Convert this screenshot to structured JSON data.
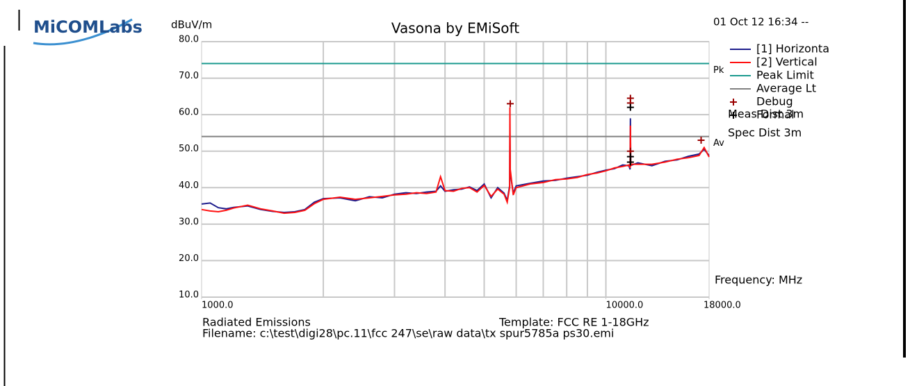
{
  "logo": "MiCOMLabs",
  "chart_data": {
    "type": "line",
    "title": "Vasona by EMiSoft",
    "timestamp": "01 Oct 12 16:34 --",
    "ylabel": "dBuV/m",
    "xlabel": "Frequency: MHz",
    "notes": [
      "Meas Dist 3m",
      "Spec Dist 3m"
    ],
    "footer": [
      "Radiated Emissions",
      "Template: FCC RE 1-18GHz",
      "Filename: c:\\test\\digi28\\pc.11\\fcc 247\\se\\raw data\\tx spur5785a ps30.emi"
    ],
    "xscale": "log",
    "xlim": [
      1000,
      18000
    ],
    "ylim": [
      10,
      80
    ],
    "xticks": [
      {
        "value": 1000,
        "label": "1000.0"
      },
      {
        "value": 10000,
        "label": "10000.0"
      },
      {
        "value": 18000,
        "label": "18000.0"
      }
    ],
    "xgrid": [
      2000,
      3000,
      4000,
      5000,
      6000,
      7000,
      8000,
      9000,
      10000
    ],
    "yticks": [
      {
        "value": 10,
        "label": "10.0"
      },
      {
        "value": 20,
        "label": "20.0"
      },
      {
        "value": 30,
        "label": "30.0"
      },
      {
        "value": 40,
        "label": "40.0"
      },
      {
        "value": 50,
        "label": "50.0"
      },
      {
        "value": 60,
        "label": "60.0"
      },
      {
        "value": 70,
        "label": "70.0"
      },
      {
        "value": 80,
        "label": "80.0"
      }
    ],
    "grid": true,
    "x": [
      1000,
      1050,
      1100,
      1150,
      1200,
      1300,
      1400,
      1500,
      1600,
      1700,
      1800,
      1900,
      2000,
      2200,
      2400,
      2600,
      2800,
      3000,
      3200,
      3400,
      3600,
      3800,
      3900,
      4000,
      4200,
      4400,
      4600,
      4800,
      5000,
      5200,
      5400,
      5600,
      5700,
      5780,
      5790,
      5800,
      5900,
      6000,
      6500,
      7000,
      7500,
      8000,
      8500,
      9000,
      9500,
      10000,
      10500,
      11000,
      11400,
      11480,
      11500,
      11520,
      11600,
      12000,
      13000,
      14000,
      15000,
      16000,
      17000,
      17500,
      18000
    ],
    "series": [
      {
        "name": "[1] Horizonta",
        "color": "#1c1c8c",
        "values": [
          35.5,
          35.8,
          34.5,
          34.2,
          34.6,
          35.0,
          34.0,
          33.5,
          33.2,
          33.4,
          34.0,
          36.0,
          37.0,
          37.2,
          36.4,
          37.5,
          37.2,
          38.2,
          38.6,
          38.4,
          38.8,
          39.0,
          40.5,
          39.0,
          39.4,
          39.6,
          40.2,
          39.2,
          41.0,
          37.2,
          40.0,
          38.5,
          36.5,
          40.5,
          55.0,
          44.0,
          38.5,
          40.5,
          41.2,
          41.8,
          42.0,
          42.6,
          43.0,
          43.4,
          44.2,
          44.8,
          45.2,
          46.2,
          46.0,
          45.0,
          59.0,
          46.5,
          46.2,
          46.8,
          46.0,
          47.2,
          47.6,
          48.6,
          49.2,
          50.5,
          48.8
        ]
      },
      {
        "name": "[2] Vertical",
        "color": "#ff1010",
        "values": [
          34.0,
          33.6,
          33.4,
          33.8,
          34.4,
          35.2,
          34.2,
          33.6,
          33.0,
          33.2,
          33.8,
          35.6,
          36.8,
          37.4,
          36.8,
          37.2,
          37.6,
          38.0,
          38.2,
          38.6,
          38.4,
          38.8,
          43.0,
          39.2,
          39.0,
          39.8,
          40.0,
          38.8,
          40.6,
          37.6,
          39.6,
          38.2,
          36.0,
          40.0,
          62.0,
          45.0,
          38.0,
          40.0,
          41.0,
          41.4,
          42.2,
          42.4,
          42.8,
          43.6,
          44.0,
          44.6,
          45.4,
          45.8,
          46.2,
          45.4,
          57.0,
          46.0,
          46.4,
          46.4,
          46.4,
          47.0,
          47.8,
          48.2,
          48.8,
          51.0,
          48.4
        ]
      }
    ],
    "limits": [
      {
        "name": "Peak Limit",
        "value": 74,
        "color": "#1a9a8e",
        "tag": "Pk"
      },
      {
        "name": "Average Lt",
        "value": 54,
        "color": "#808080",
        "tag": "Av"
      }
    ],
    "markers": [
      {
        "name": "Debug",
        "color": "#9a0000",
        "x": [
          5800,
          11500,
          11500,
          11500,
          17200
        ],
        "y": [
          63,
          64.5,
          63.2,
          50,
          53
        ]
      },
      {
        "name": "Formal",
        "color": "#000000",
        "x": [
          11500,
          11500,
          11500
        ],
        "y": [
          62,
          48.5,
          47
        ]
      }
    ]
  }
}
